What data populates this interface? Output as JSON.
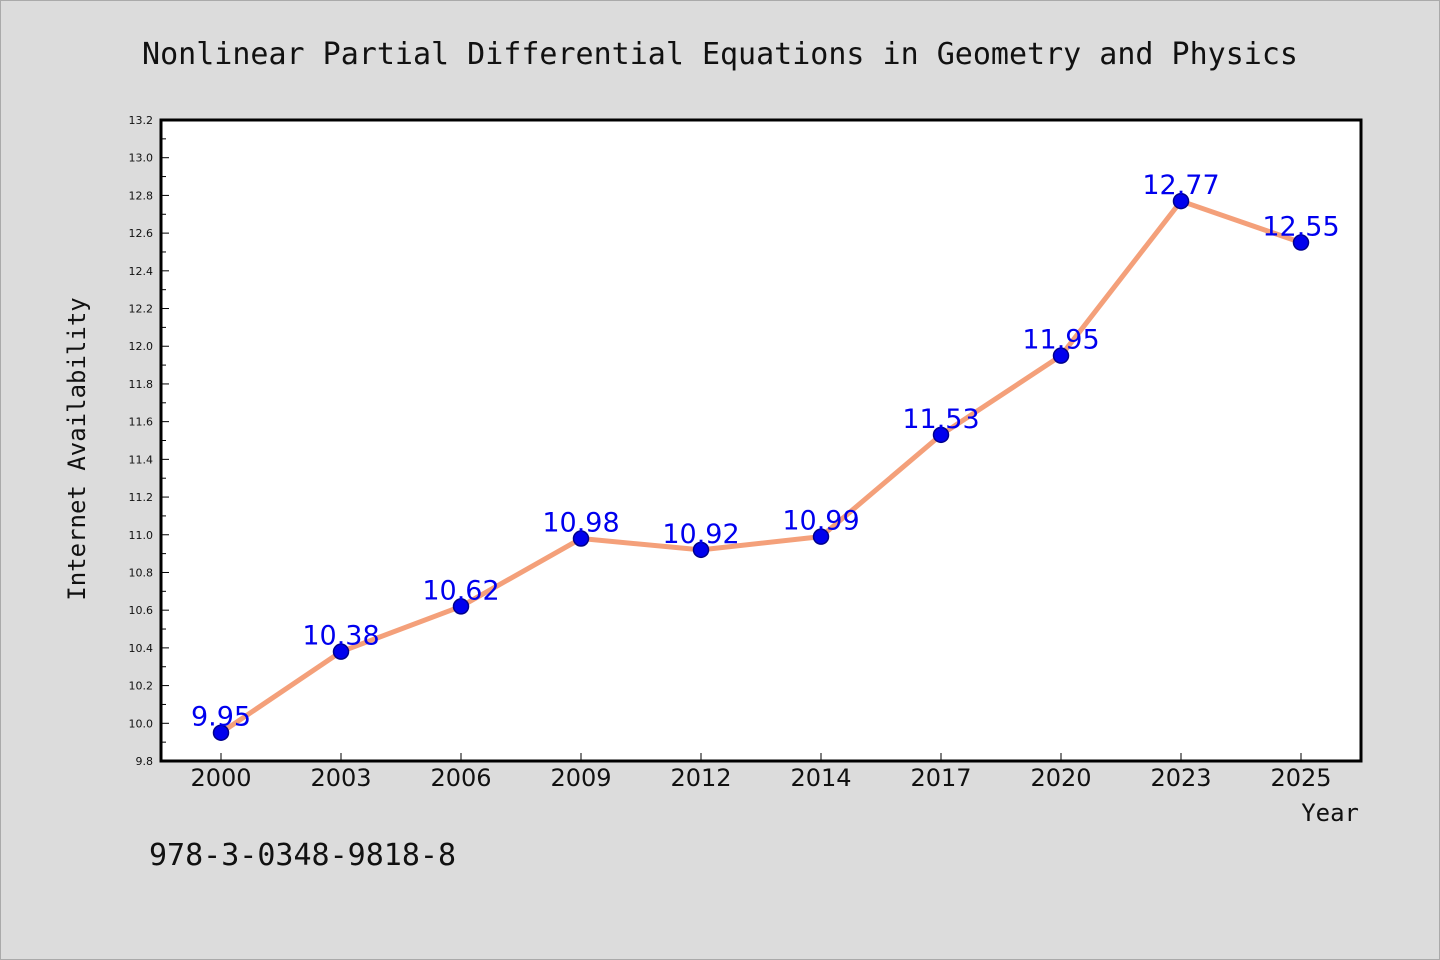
{
  "chart_data": {
    "type": "line",
    "title": "Nonlinear Partial Differential Equations in Geometry and Physics",
    "xlabel": "Year",
    "ylabel": "Internet Availability",
    "categories": [
      "2000",
      "2003",
      "2006",
      "2009",
      "2012",
      "2014",
      "2017",
      "2020",
      "2023",
      "2025"
    ],
    "series": [
      {
        "values": [
          9.95,
          10.38,
          10.62,
          10.98,
          10.92,
          10.99,
          11.53,
          11.95,
          12.77,
          12.55
        ],
        "labels": [
          "9.95",
          "10.38",
          "10.62",
          "10.98",
          "10.92",
          "10.99",
          "11.53",
          "11.95",
          "12.77",
          "12.55"
        ]
      }
    ],
    "ylim": [
      9.8,
      13.2
    ],
    "yticks": [
      "9.8",
      "10.0",
      "10.2",
      "10.4",
      "10.6",
      "10.8",
      "11.0",
      "11.2",
      "11.4",
      "11.6",
      "11.8",
      "12.0",
      "12.2",
      "12.4",
      "12.6",
      "12.8",
      "13.0",
      "13.2"
    ],
    "grid": false,
    "legend": "none",
    "colors": {
      "line": "#f4a07a",
      "marker_fill": "#0000ee",
      "marker_edge": "#00008b",
      "data_label": "#0000ee",
      "plot_background": "#ffffff",
      "figure_background": "#dcdcdc"
    }
  },
  "footer": {
    "isbn": "978-3-0348-9818-8"
  }
}
